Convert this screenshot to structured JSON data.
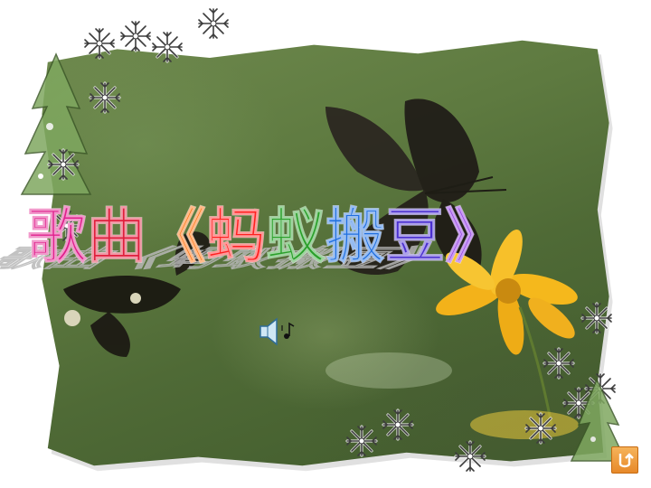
{
  "slide": {
    "title_chars": [
      "歌",
      "曲",
      "《",
      "蚂",
      "蚁",
      "搬",
      "豆",
      "》"
    ],
    "title_colors": [
      "#e01e8c",
      "#e01e3c",
      "#ff6a00",
      "#ff2020",
      "#2aa02a",
      "#1f6fe0",
      "#4a2fd0",
      "#8a2be2"
    ]
  },
  "icons": {
    "speaker": "speaker-icon",
    "return": "return-icon"
  }
}
